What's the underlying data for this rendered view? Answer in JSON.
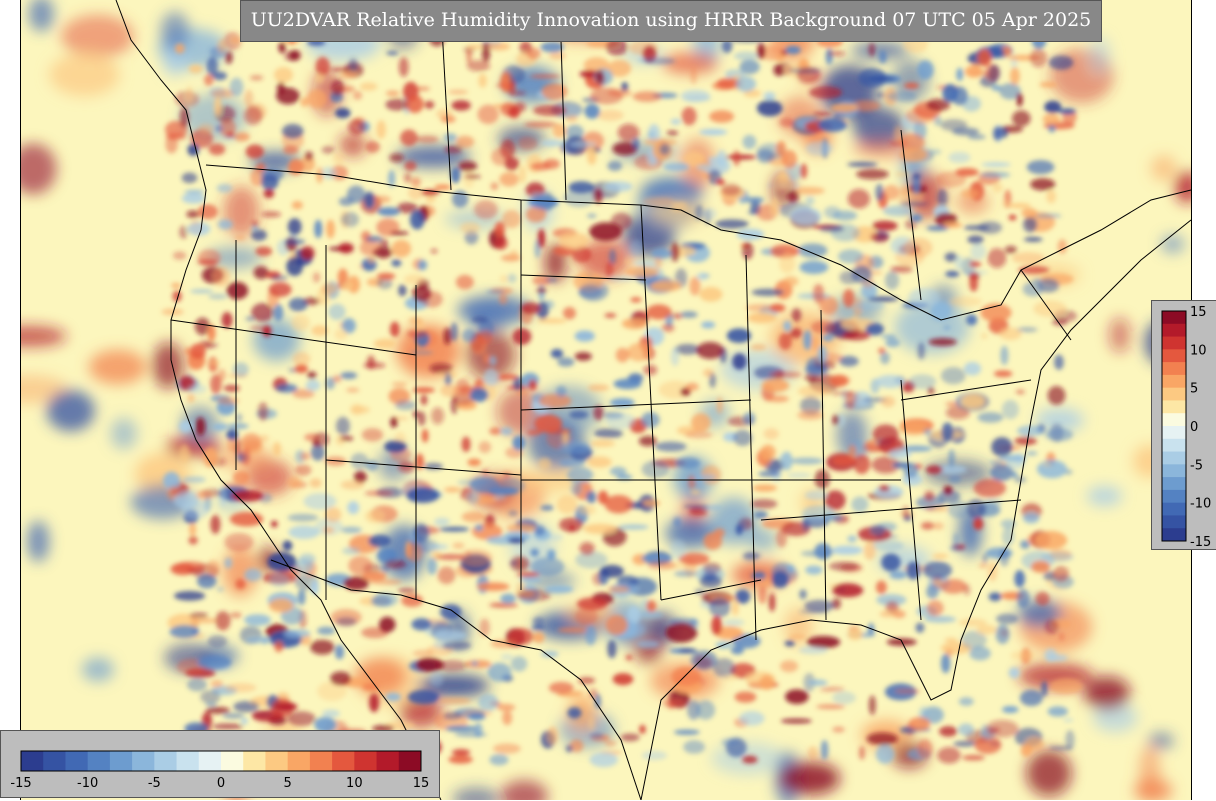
{
  "title": "UU2DVAR Relative Humidity Innovation using HRRR Background 07 UTC 05 Apr 2025",
  "colorbar": {
    "min": -15,
    "max": 15,
    "colors": [
      "#2c3d8f",
      "#3553a3",
      "#4169b4",
      "#5482c2",
      "#6d9ccf",
      "#8bb6db",
      "#aacde5",
      "#c9e2ee",
      "#e6f2f3",
      "#fbfbe0",
      "#fde7a5",
      "#fcc982",
      "#f9a665",
      "#f28150",
      "#e4583e",
      "#cf3430",
      "#b31a2a",
      "#8c0b25"
    ],
    "horizontal_ticks": [
      "-15",
      "-10",
      "-5",
      "0",
      "5",
      "10",
      "15"
    ],
    "vertical_ticks": [
      "15",
      "10",
      "5",
      "0",
      "-5",
      "-10",
      "-15"
    ]
  },
  "colors": {
    "neutral_background": "#fcf6bd",
    "title_bar": "#888888",
    "colorbar_panel": "#bdbdbd"
  }
}
